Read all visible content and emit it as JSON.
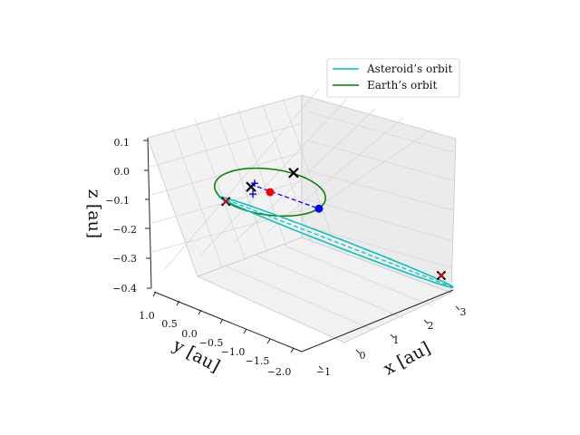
{
  "chart_data": {
    "type": "line3d",
    "title": "",
    "xlabel": "x [au]",
    "ylabel": "y [au]",
    "zlabel": "z [au]",
    "xlim": [
      -1.2,
      3.2
    ],
    "ylim": [
      -2.1,
      1.1
    ],
    "zlim": [
      -0.4,
      0.1
    ],
    "x_ticks": [
      "−1",
      "0",
      "1",
      "2",
      "3"
    ],
    "y_ticks": [
      "1.0",
      "0.5",
      "0.0",
      "−0.5",
      "−1.0",
      "−1.5",
      "−2.0"
    ],
    "z_ticks": [
      "0.1",
      "0.0",
      "−0.1",
      "−0.2",
      "−0.3",
      "−0.4"
    ],
    "grid": true,
    "legend": {
      "placement": "top-right",
      "entries": [
        {
          "label": "Asteroid’s orbit",
          "color": "#00bfbf"
        },
        {
          "label": "Earth’s orbit",
          "color": "#008000"
        }
      ]
    },
    "colors": {
      "asteroid": "#00bfbf",
      "earth": "#008000",
      "sun": "#ff0000",
      "marker": "#0000ff",
      "cross": "#000000",
      "cross_red": "#ff0000",
      "pane": "#f2f2f2",
      "pane_side": "#ebebeb",
      "grid": "#d6d6d6"
    },
    "series": [
      {
        "name": "Asteroid’s orbit",
        "kind": "ellipse",
        "semi_major_au": 1.85,
        "eccentricity": 0.84,
        "inclination_deg": 7.0,
        "ascending_node_deg": 300,
        "arg_perihelion_deg": 140
      },
      {
        "name": "Earth’s orbit",
        "kind": "circle",
        "radius_au": 1.0
      }
    ],
    "points": [
      {
        "kind": "sun",
        "x": 0,
        "y": 0,
        "z": 0
      },
      {
        "kind": "blue-dot",
        "x": 0.85,
        "y": -0.45,
        "z": -0.07
      },
      {
        "kind": "black-cross",
        "x": 1.0,
        "y": 0.25,
        "z": 0.0
      },
      {
        "kind": "black-cross",
        "x": -0.3,
        "y": 0.2,
        "z": 0.02
      },
      {
        "kind": "red-black-cross",
        "x": -0.97,
        "y": 0.25,
        "z": 0.0
      },
      {
        "kind": "red-black-cross",
        "x": 2.95,
        "y": -1.6,
        "z": -0.33
      }
    ]
  }
}
